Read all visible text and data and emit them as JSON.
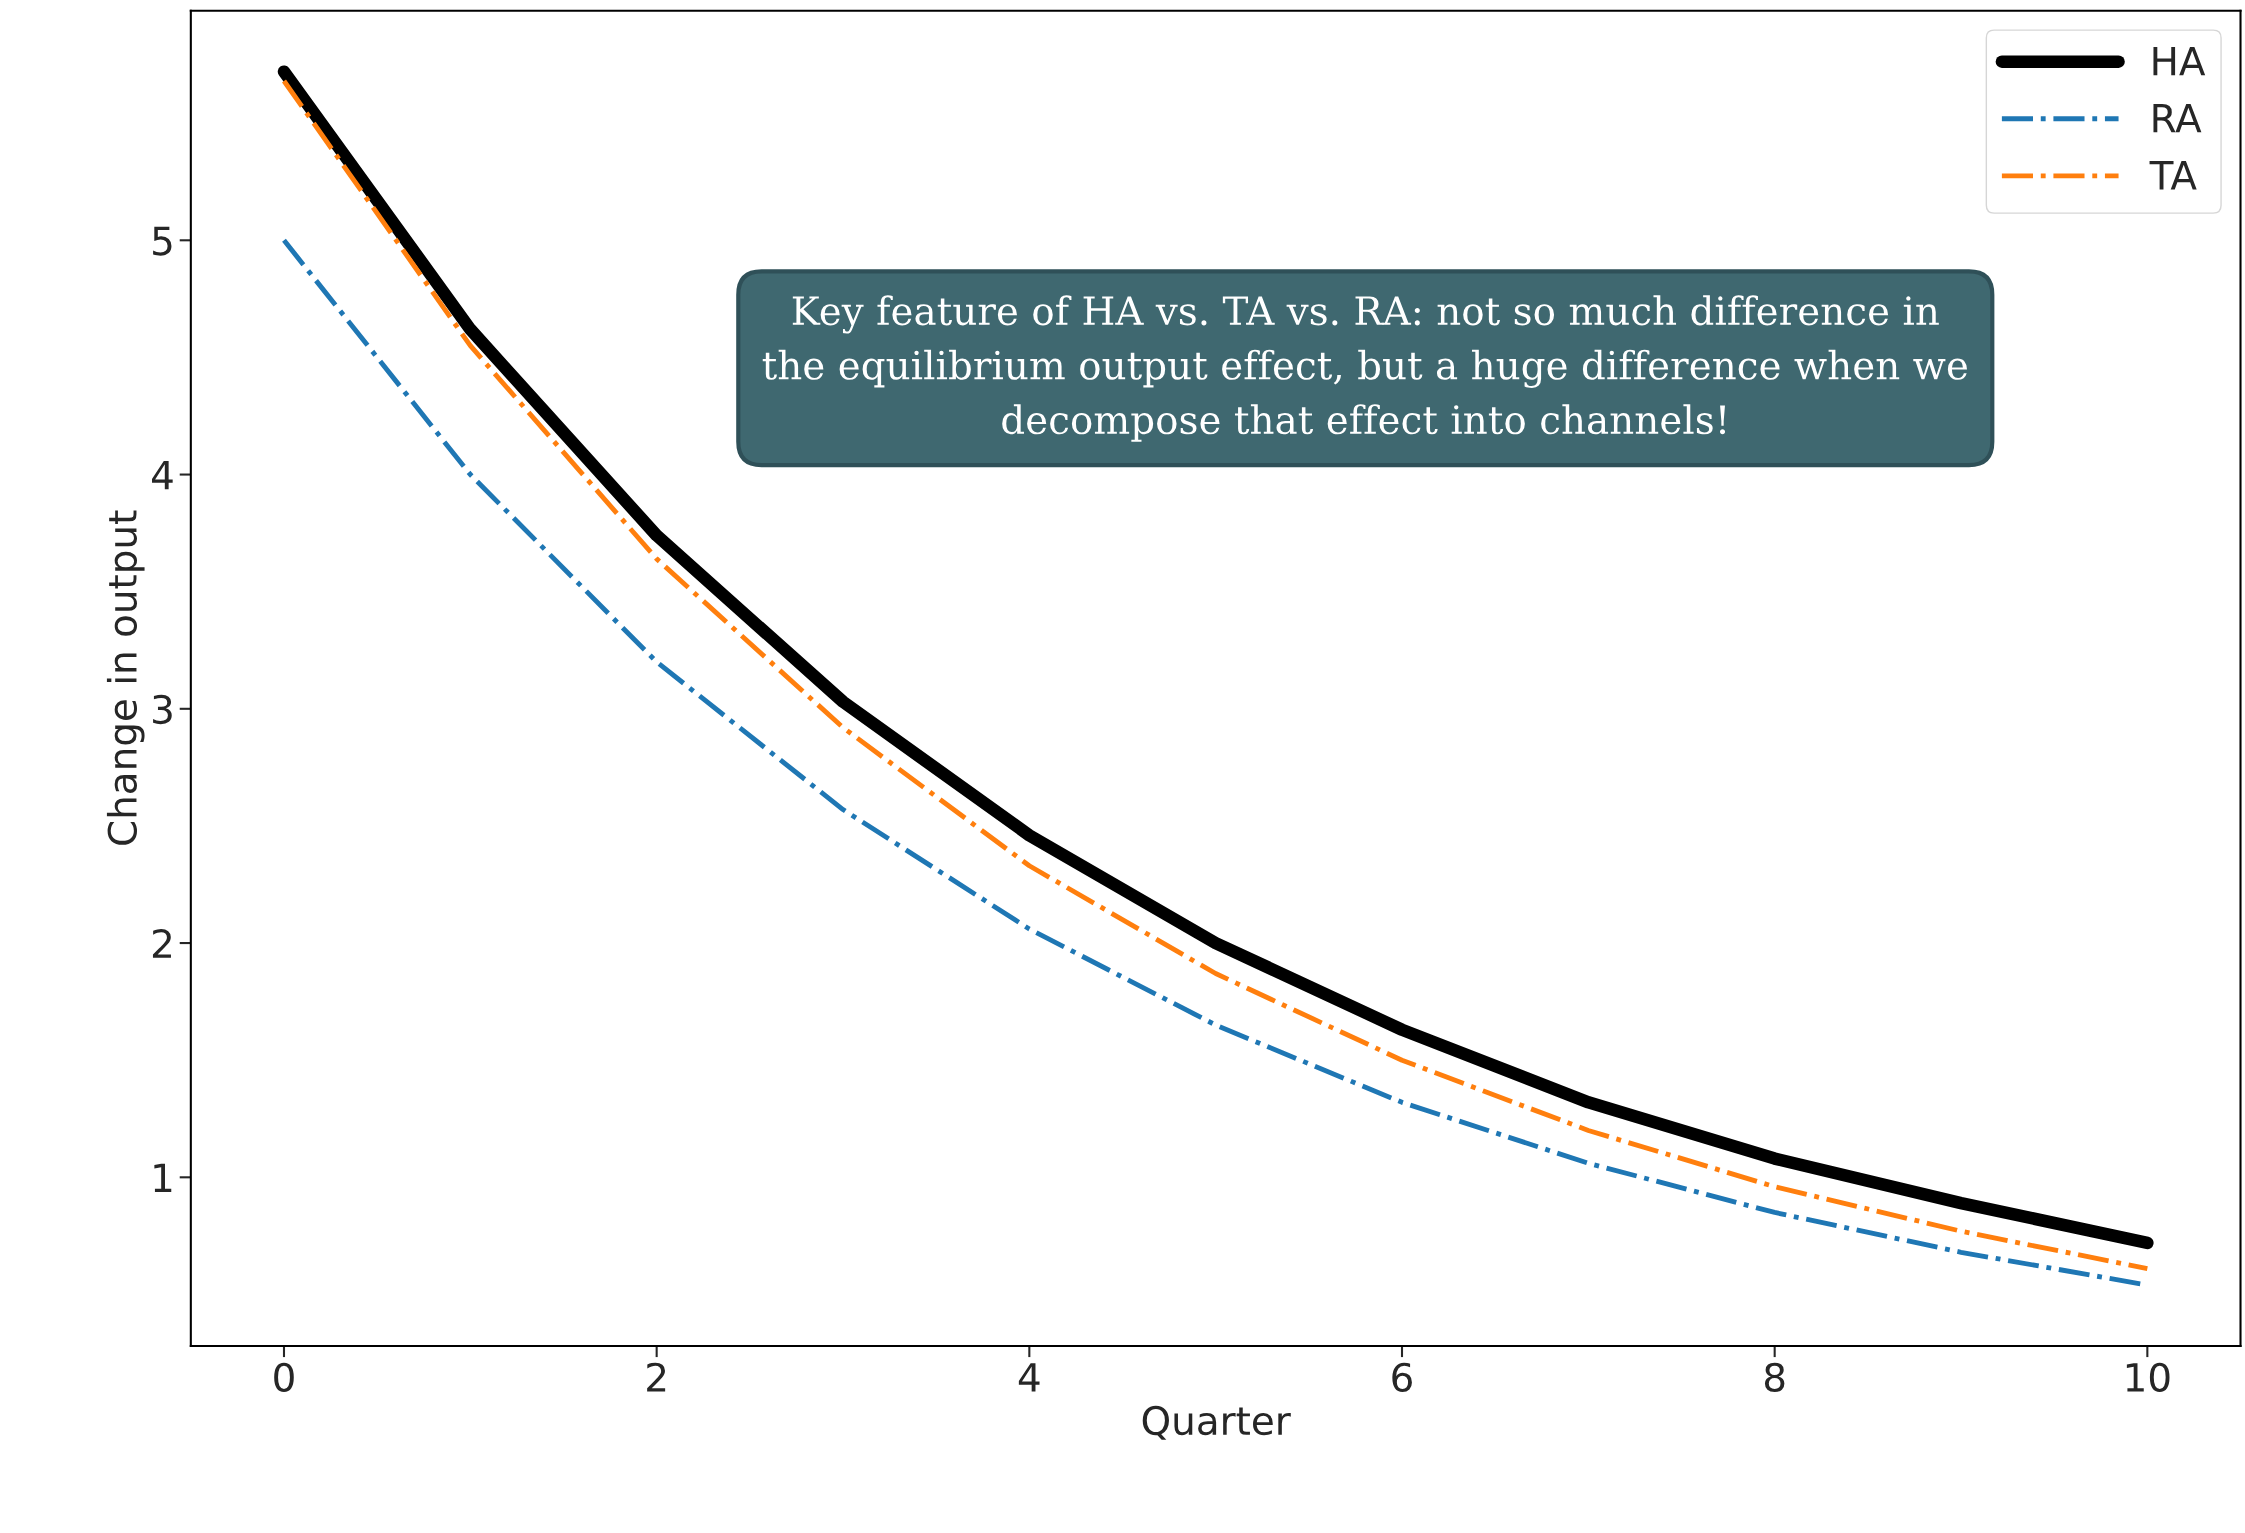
{
  "chart_data": {
    "type": "line",
    "xlabel": "Quarter",
    "ylabel": "Change in output",
    "x": [
      0,
      1,
      2,
      3,
      4,
      5,
      6,
      7,
      8,
      9,
      10
    ],
    "series": [
      {
        "name": "HA",
        "color": "#000000",
        "line_style": "solid",
        "values": [
          5.72,
          4.62,
          3.74,
          3.03,
          2.46,
          2.0,
          1.63,
          1.32,
          1.08,
          0.89,
          0.72
        ]
      },
      {
        "name": "RA",
        "color": "#1f77b4",
        "line_style": "dashdot",
        "values": [
          5.0,
          4.0,
          3.2,
          2.57,
          2.06,
          1.65,
          1.32,
          1.06,
          0.85,
          0.68,
          0.54
        ]
      },
      {
        "name": "TA",
        "color": "#ff7f0e",
        "line_style": "dashdot",
        "values": [
          5.68,
          4.55,
          3.64,
          2.92,
          2.33,
          1.87,
          1.5,
          1.2,
          0.96,
          0.77,
          0.61
        ]
      }
    ],
    "xlim": [
      -0.5,
      10.5
    ],
    "ylim": [
      0.28,
      5.98
    ],
    "xticks": [
      0,
      2,
      4,
      6,
      8,
      10
    ],
    "yticks": [
      1,
      2,
      3,
      4,
      5
    ],
    "grid": false,
    "legend": "top right",
    "annotations": [
      "Key feature of HA vs. TA vs. RA: not so much difference in the equilibrium output effect, but a huge difference when we decompose that effect into channels!"
    ]
  }
}
